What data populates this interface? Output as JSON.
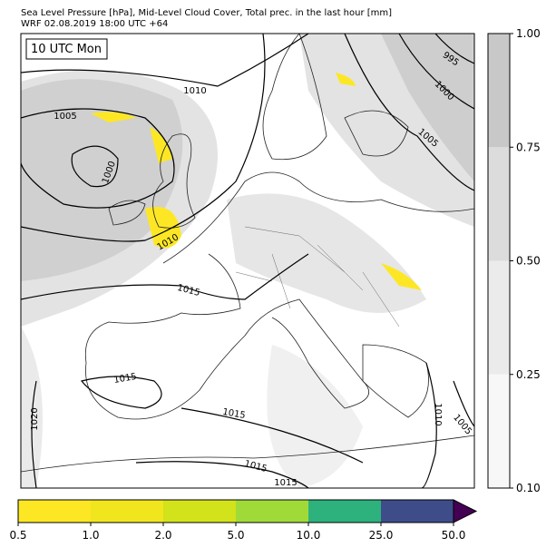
{
  "header": {
    "line1": "Sea Level Pressure [hPa], Mid-Level Cloud Cover, Total prec. in the last hour [mm]",
    "line2": "WRF 02.08.2019 18:00 UTC +64"
  },
  "map": {
    "time_label": "10 UTC Mon",
    "contour_labels": [
      "1010",
      "1005",
      "1000",
      "1010",
      "1015",
      "1015",
      "1020",
      "1015",
      "1015",
      "1015",
      "995",
      "1000",
      "1005",
      "1010",
      "1005"
    ]
  },
  "cloud_colorbar": {
    "ticks": [
      "0.10",
      "0.25",
      "0.50",
      "0.75",
      "1.00"
    ],
    "colors": [
      "#f7f7f7",
      "#ebebeb",
      "#dcdcdc",
      "#c8c8c8"
    ]
  },
  "precip_colorbar": {
    "ticks": [
      "0.5",
      "1.0",
      "2.0",
      "5.0",
      "10.0",
      "25.0",
      "50.0"
    ],
    "colors": [
      "#fde725",
      "#f1e51d",
      "#d2e21b",
      "#a0da39",
      "#2db27d",
      "#3e4c8a"
    ],
    "over_color": "#440154"
  }
}
